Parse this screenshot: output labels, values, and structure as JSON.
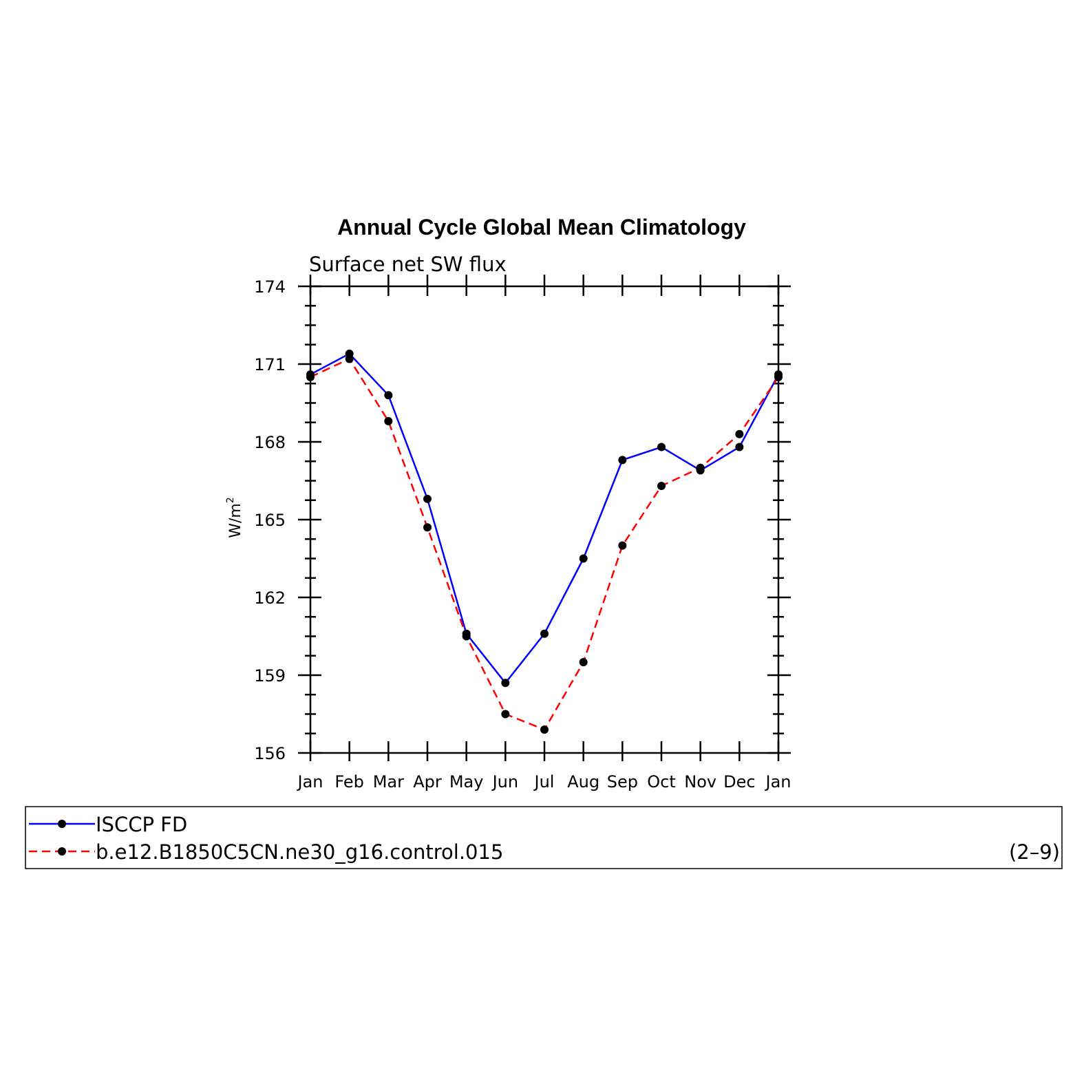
{
  "chart_data": {
    "type": "line",
    "title": "Annual Cycle Global Mean Climatology",
    "subtitle": "Surface net SW flux",
    "ylabel": "W/m",
    "ylabel_sup": "2",
    "xlabel": "",
    "categories": [
      "Jan",
      "Feb",
      "Mar",
      "Apr",
      "May",
      "Jun",
      "Jul",
      "Aug",
      "Sep",
      "Oct",
      "Nov",
      "Dec",
      "Jan"
    ],
    "ylim": [
      156,
      174
    ],
    "yticks": [
      "156",
      "159",
      "162",
      "165",
      "168",
      "171",
      "174"
    ],
    "series": [
      {
        "name": "ISCCP FD",
        "color": "#0000ff",
        "dash": "solid",
        "values": [
          170.6,
          171.4,
          169.8,
          165.8,
          160.6,
          158.7,
          160.6,
          163.5,
          167.3,
          167.8,
          166.9,
          167.8,
          170.6
        ]
      },
      {
        "name": "b.e12.B1850C5CN.ne30_g16.control.015",
        "color": "#ff0000",
        "dash": "dashed",
        "values": [
          170.5,
          171.2,
          168.8,
          164.7,
          160.5,
          157.5,
          156.9,
          159.5,
          164.0,
          166.3,
          167.0,
          168.3,
          170.5
        ]
      }
    ],
    "legend_note": "(2–9)",
    "grid": false,
    "legend_position": "bottom"
  }
}
